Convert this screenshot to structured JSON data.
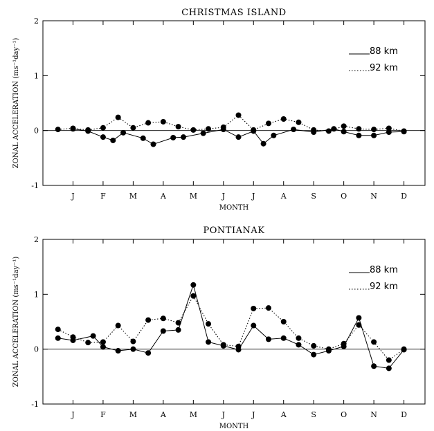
{
  "chart_data": [
    {
      "type": "line",
      "title": "CHRISTMAS ISLAND",
      "xlabel": "MONTH",
      "ylabel": "ZONAL ACCELERATION (ms⁻¹day⁻¹)",
      "ylim": [
        -1,
        2
      ],
      "yticks": [
        "-1",
        "0",
        "1",
        "2"
      ],
      "categories": [
        "J",
        "F",
        "M",
        "A",
        "M",
        "J",
        "J",
        "A",
        "S",
        "O",
        "N",
        "D"
      ],
      "series": [
        {
          "name": "88 km",
          "style": "solid",
          "x": [
            1,
            1.5,
            2,
            2.33,
            2.67,
            3.33,
            3.67,
            4.33,
            4.67,
            5.33,
            6,
            6.5,
            7,
            7.33,
            7.67,
            8.33,
            9,
            9.67,
            10,
            10.5,
            11,
            11.5,
            12
          ],
          "y": [
            0.03,
            -0.01,
            -0.12,
            -0.18,
            -0.04,
            -0.14,
            -0.25,
            -0.13,
            -0.12,
            -0.05,
            0.02,
            -0.12,
            -0.01,
            -0.24,
            -0.09,
            0.02,
            -0.03,
            0.03,
            -0.02,
            -0.09,
            -0.09,
            -0.03,
            -0.02
          ]
        },
        {
          "name": "92 km",
          "style": "dotted",
          "x": [
            0.5,
            1,
            1.5,
            2,
            2.5,
            3,
            3.5,
            4,
            4.5,
            5,
            5.5,
            6,
            6.5,
            7,
            7.5,
            8,
            8.5,
            9,
            9.5,
            10,
            10.5,
            11,
            11.5,
            12
          ],
          "y": [
            0.02,
            0.04,
            0.01,
            0.05,
            0.24,
            0.05,
            0.14,
            0.16,
            0.07,
            0.01,
            0.03,
            0.06,
            0.28,
            0.01,
            0.13,
            0.21,
            0.15,
            0.01,
            -0.01,
            0.08,
            0.03,
            0.02,
            0.04,
            -0.01
          ]
        }
      ],
      "legend": [
        "88 km",
        "92 km"
      ]
    },
    {
      "type": "line",
      "title": "PONTIANAK",
      "xlabel": "MONTH",
      "ylabel": "ZONAL ACCELERATION (ms⁻¹day⁻¹)",
      "ylim": [
        -1,
        2
      ],
      "yticks": [
        "-1",
        "0",
        "1",
        "2"
      ],
      "categories": [
        "J",
        "F",
        "M",
        "A",
        "M",
        "J",
        "J",
        "A",
        "S",
        "O",
        "N",
        "D"
      ],
      "series": [
        {
          "name": "88 km",
          "style": "solid",
          "x": [
            0.5,
            1,
            1.67,
            2,
            2.5,
            3,
            3.5,
            4,
            4.5,
            5,
            5.5,
            6,
            6.5,
            7,
            7.5,
            8,
            8.5,
            9,
            9.5,
            10,
            10.5,
            11,
            11.5,
            12
          ],
          "y": [
            0.2,
            0.16,
            0.24,
            0.04,
            -0.03,
            0.0,
            -0.07,
            0.33,
            0.35,
            1.17,
            0.13,
            0.06,
            -0.01,
            0.43,
            0.18,
            0.2,
            0.08,
            -0.1,
            -0.03,
            0.05,
            0.57,
            -0.31,
            -0.35,
            -0.01
          ]
        },
        {
          "name": "92 km",
          "style": "dotted",
          "x": [
            0.5,
            1,
            1.5,
            2,
            2.5,
            3,
            3.5,
            4,
            4.5,
            5,
            5.5,
            6,
            6.5,
            7,
            7.5,
            8,
            8.5,
            9,
            9.5,
            10,
            10.5,
            11,
            11.5,
            12
          ],
          "y": [
            0.36,
            0.22,
            0.12,
            0.13,
            0.43,
            0.14,
            0.53,
            0.56,
            0.48,
            0.97,
            0.46,
            0.08,
            0.05,
            0.74,
            0.75,
            0.5,
            0.2,
            0.06,
            0.0,
            0.1,
            0.44,
            0.13,
            -0.2,
            0.0
          ]
        }
      ],
      "legend": [
        "88 km",
        "92 km"
      ]
    }
  ]
}
